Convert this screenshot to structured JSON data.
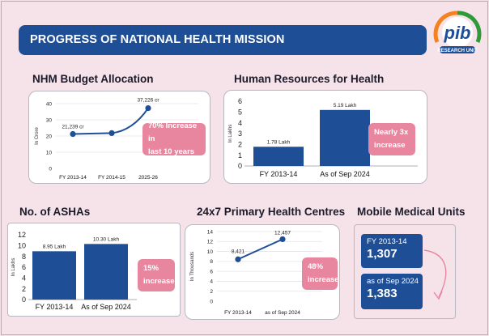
{
  "page_title": "PROGRESS OF NATIONAL HEALTH MISSION",
  "logo": {
    "text": "RESEARCH UNIT",
    "icon": "pib-logo-icon"
  },
  "colors": {
    "navy": "#1e4f96",
    "pink": "#e8869f",
    "background": "#f6e3ea"
  },
  "chart_data": [
    {
      "id": "budget",
      "type": "line",
      "title": "NHM Budget Allocation",
      "ylabel": "In Crore",
      "xlabel": "",
      "categories": [
        "FY 2013-14",
        "FY 2014-15",
        "2025-26"
      ],
      "values": [
        21239,
        21800,
        37226
      ],
      "data_labels": [
        "21,239 cr",
        "",
        "37,226 cr"
      ],
      "ylim": [
        0,
        40
      ],
      "yticks": [
        "0",
        "10",
        "20",
        "30",
        "40"
      ],
      "y_scale": "thousands",
      "callout": "70% Increase in\nlast 10 years"
    },
    {
      "id": "hr",
      "type": "bar",
      "title": "Human Resources for Health",
      "ylabel": "In Lakhs",
      "categories": [
        "FY 2013-14",
        "As of Sep 2024"
      ],
      "values": [
        1.78,
        5.19
      ],
      "data_labels": [
        "1.78 Lakh",
        "5.19 Lakh"
      ],
      "ylim": [
        0,
        6
      ],
      "yticks": [
        "0",
        "1",
        "2",
        "3",
        "4",
        "5",
        "6"
      ],
      "callout": "Nearly 3x\nincrease"
    },
    {
      "id": "asha",
      "type": "bar",
      "title": "No. of ASHAs",
      "ylabel": "In Lakhs",
      "categories": [
        "FY 2013-14",
        "As of Sep 2024"
      ],
      "values": [
        8.95,
        10.3
      ],
      "data_labels": [
        "8.95 Lakh",
        "10.30 Lakh"
      ],
      "ylim": [
        0,
        12
      ],
      "yticks": [
        "0",
        "2",
        "4",
        "6",
        "8",
        "10",
        "12"
      ],
      "callout": "15%\nincrease"
    },
    {
      "id": "phc",
      "type": "line",
      "title": "24x7 Primary Health Centres",
      "ylabel": "In Thousands",
      "categories": [
        "FY 2013-14",
        "as of Sep 2024"
      ],
      "values": [
        8.421,
        12.457
      ],
      "data_labels": [
        "8,421",
        "12,457"
      ],
      "ylim": [
        0,
        14
      ],
      "yticks": [
        "0",
        "2",
        "4",
        "6",
        "8",
        "10",
        "12",
        "14"
      ],
      "callout": "48%\nincrease"
    }
  ],
  "mmu": {
    "title": "Mobile Medical Units",
    "items": [
      {
        "label": "FY 2013-14",
        "value": "1,307"
      },
      {
        "label": "as of Sep 2024",
        "value": "1,383"
      }
    ]
  }
}
